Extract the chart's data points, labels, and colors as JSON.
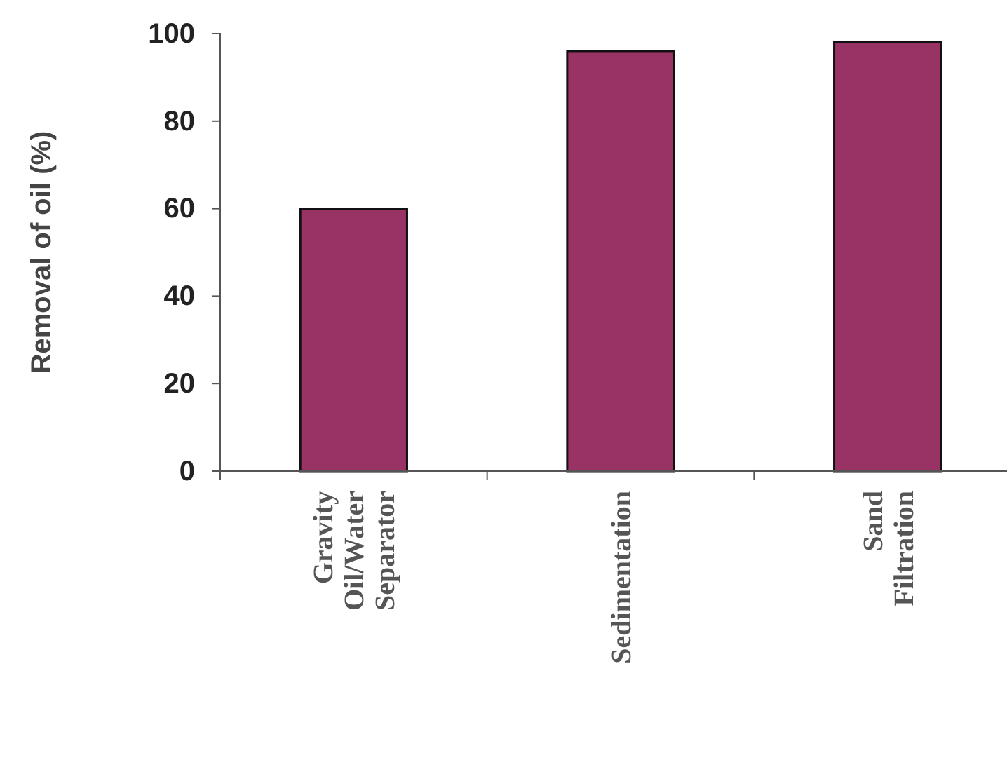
{
  "chart_data": {
    "type": "bar",
    "ylabel": "Removal of oil (%)",
    "categories": [
      "Gravity Oil/Water Separator",
      "Sedimentation",
      "Sand Filtration"
    ],
    "values": [
      60,
      96,
      98
    ],
    "color": "#993366",
    "ylim": [
      0,
      100
    ],
    "yticks": [
      0,
      20,
      40,
      60,
      80,
      100
    ],
    "grid": false,
    "legend": false
  }
}
